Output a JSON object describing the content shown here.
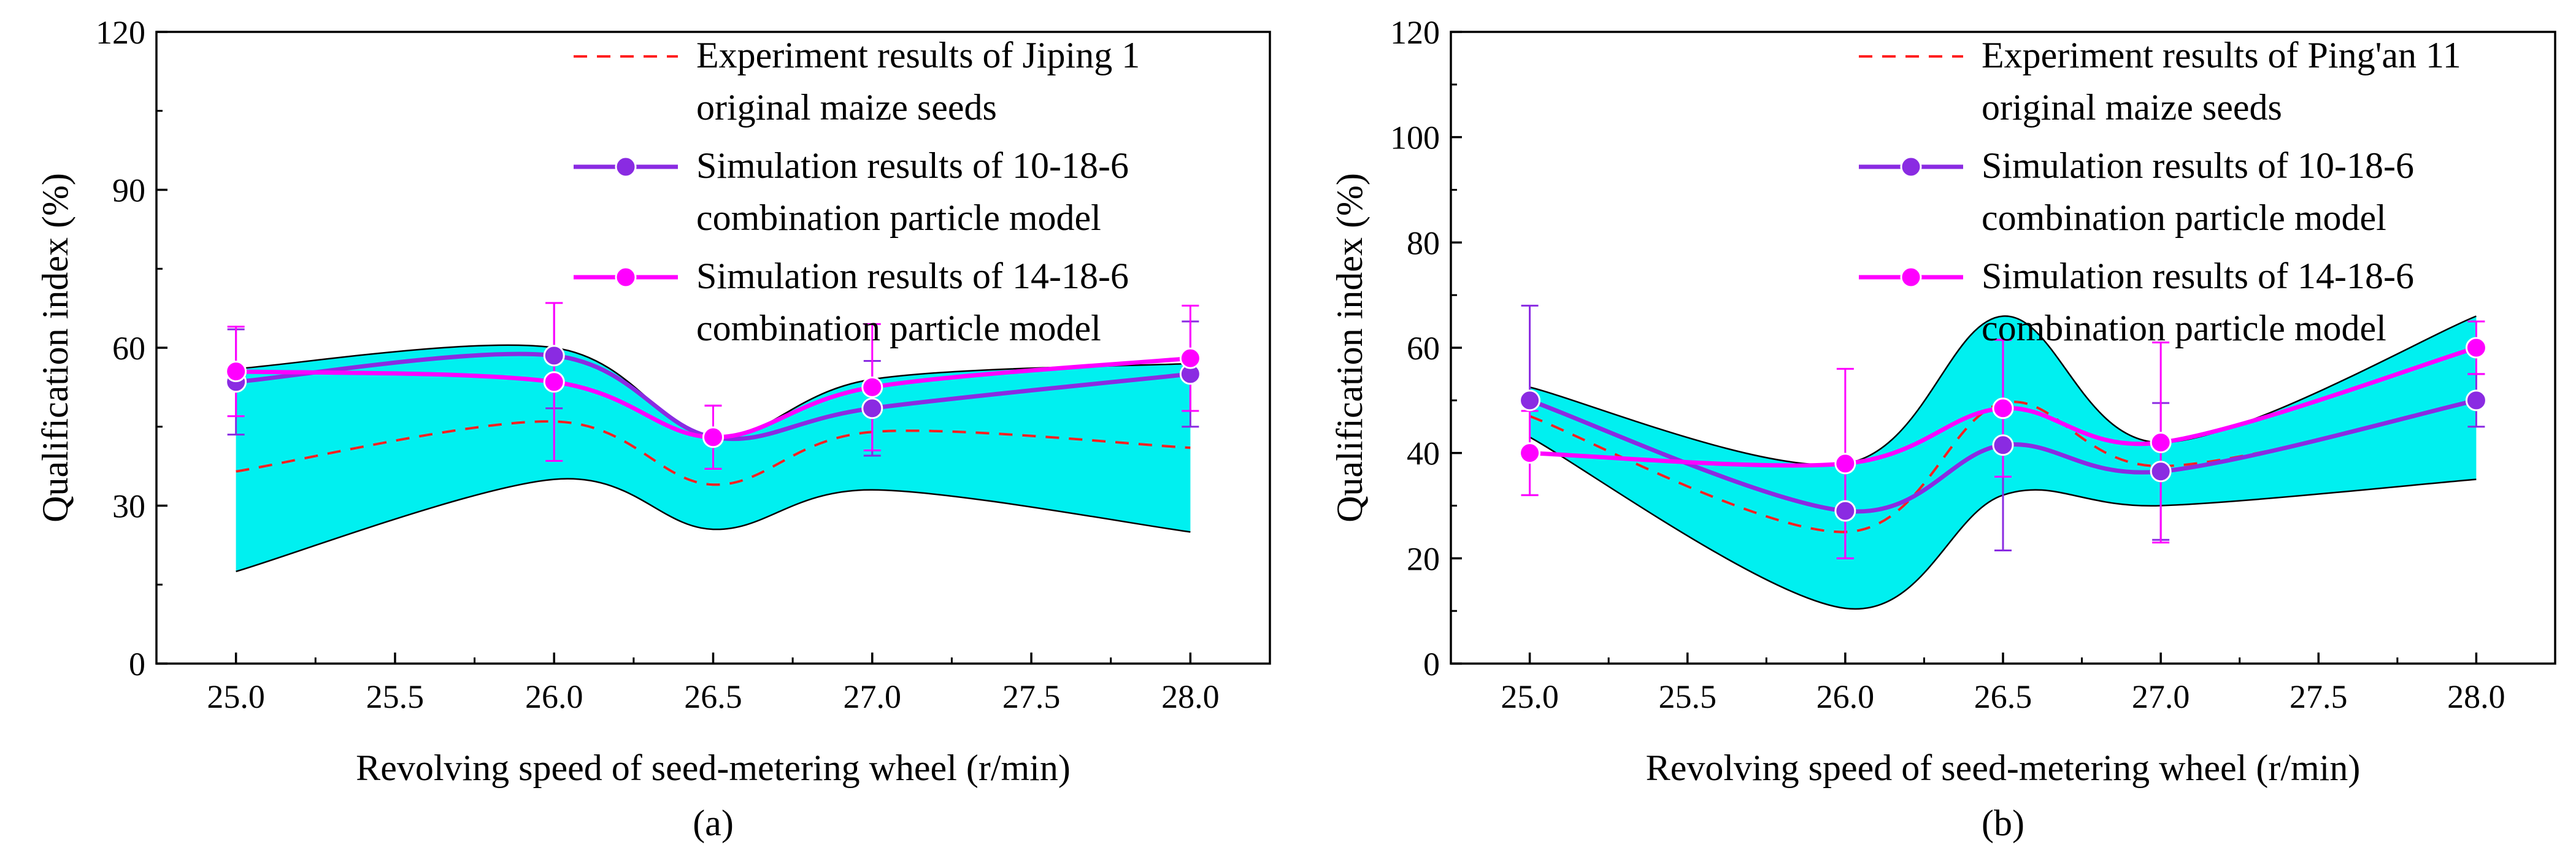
{
  "chart_data": [
    {
      "type": "line",
      "panel_label": "(a)",
      "xlabel": "Revolving speed of seed-metering wheel (r/min)",
      "ylabel": "Qualification index (%)",
      "xlim": [
        24.75,
        28.25
      ],
      "ylim": [
        0,
        120
      ],
      "xticks": [
        "25.0",
        "25.5",
        "26.0",
        "26.5",
        "27.0",
        "27.5",
        "28.0"
      ],
      "yticks": [
        "0",
        "30",
        "60",
        "90",
        "120"
      ],
      "grid": false,
      "legend_position": "top-right",
      "band": {
        "color": "#00f0f0",
        "x": [
          25.0,
          26.0,
          26.5,
          27.0,
          28.0
        ],
        "upper": [
          56,
          60,
          43,
          54,
          57
        ],
        "lower": [
          17.5,
          35,
          25.5,
          33,
          25
        ]
      },
      "series": [
        {
          "name_lines": [
            "Experiment results of Jiping 1",
            "original maize seeds"
          ],
          "style": "dashed",
          "color": "#ff2020",
          "x": [
            25.0,
            26.0,
            26.5,
            27.0,
            28.0
          ],
          "y": [
            36.5,
            46,
            34,
            44,
            41
          ]
        },
        {
          "name_lines": [
            "Simulation results of 10-18-6",
            "combination particle model"
          ],
          "style": "solid",
          "color": "#8a2be2",
          "x": [
            25.0,
            26.0,
            26.5,
            27.0,
            28.0
          ],
          "y": [
            53.5,
            58.5,
            43,
            48.5,
            55
          ],
          "err": [
            10,
            10,
            6,
            9,
            10
          ]
        },
        {
          "name_lines": [
            "Simulation results of 14-18-6",
            "combination particle model"
          ],
          "style": "solid",
          "color": "#ff00ff",
          "x": [
            25.0,
            26.0,
            26.5,
            27.0,
            28.0
          ],
          "y": [
            55.5,
            53.5,
            43,
            52.5,
            58
          ],
          "err": [
            8.5,
            15,
            6,
            12,
            10
          ]
        }
      ]
    },
    {
      "type": "line",
      "panel_label": "(b)",
      "xlabel": "Revolving speed of seed-metering wheel (r/min)",
      "ylabel": "Qualification index (%)",
      "xlim": [
        24.75,
        28.25
      ],
      "ylim": [
        0,
        120
      ],
      "xticks": [
        "25.0",
        "25.5",
        "26.0",
        "26.5",
        "27.0",
        "27.5",
        "28.0"
      ],
      "yticks": [
        "0",
        "20",
        "40",
        "60",
        "80",
        "100",
        "120"
      ],
      "grid": false,
      "legend_position": "top-right",
      "band": {
        "color": "#00f0f0",
        "x": [
          25.0,
          26.0,
          26.5,
          27.0,
          28.0
        ],
        "upper": [
          52.5,
          38,
          66,
          42,
          66
        ],
        "lower": [
          43,
          10.5,
          32,
          30,
          35
        ]
      },
      "series": [
        {
          "name_lines": [
            "Experiment results of Ping'an 11",
            "original maize seeds"
          ],
          "style": "dashed",
          "color": "#ff2020",
          "x": [
            25.0,
            26.0,
            26.5,
            27.0,
            28.0
          ],
          "y": [
            47,
            25,
            49.5,
            37.5,
            50
          ]
        },
        {
          "name_lines": [
            "Simulation results of 10-18-6",
            "combination particle model"
          ],
          "style": "solid",
          "color": "#8a2be2",
          "x": [
            25.0,
            26.0,
            26.5,
            27.0,
            28.0
          ],
          "y": [
            50,
            29,
            41.5,
            36.5,
            50
          ],
          "err": [
            18,
            9,
            20,
            13,
            5
          ]
        },
        {
          "name_lines": [
            "Simulation results of 14-18-6",
            "combination particle model"
          ],
          "style": "solid",
          "color": "#ff00ff",
          "x": [
            25.0,
            26.0,
            26.5,
            27.0,
            28.0
          ],
          "y": [
            40,
            38,
            48.5,
            42,
            60
          ],
          "err": [
            8,
            18,
            13,
            19,
            5
          ]
        }
      ]
    }
  ]
}
